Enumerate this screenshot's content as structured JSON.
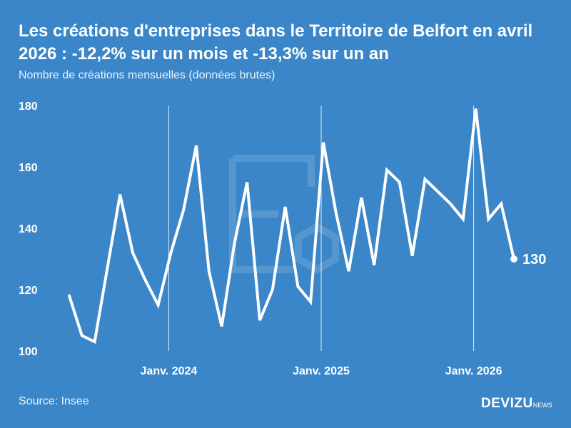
{
  "header": {
    "title": "Les créations d'entreprises dans le Territoire de Belfort en avril 2026 : -12,2% sur un mois et -13,3% sur un an",
    "subtitle": "Nombre de créations mensuelles (données brutes)"
  },
  "footer": {
    "source": "Source: Insee",
    "brand": "DEVIZU",
    "brand_suffix": "NEWS"
  },
  "colors": {
    "background": "#3a86c8",
    "line": "#ffffff",
    "watermark": "#8fb9e0"
  },
  "watermark_icon": "devizu-logo-watermark",
  "chart_data": {
    "type": "line",
    "ylim": [
      100,
      180
    ],
    "yticks": [
      100,
      120,
      140,
      160,
      180
    ],
    "grid": false,
    "x_markers": [
      {
        "label": "Janv. 2024",
        "index": 8
      },
      {
        "label": "Janv. 2025",
        "index": 20
      },
      {
        "label": "Janv. 2026",
        "index": 32
      }
    ],
    "x": [
      "2023-05",
      "2023-06",
      "2023-07",
      "2023-08",
      "2023-09",
      "2023-10",
      "2023-11",
      "2023-12",
      "2024-01",
      "2024-02",
      "2024-03",
      "2024-04",
      "2024-05",
      "2024-06",
      "2024-07",
      "2024-08",
      "2024-09",
      "2024-10",
      "2024-11",
      "2024-12",
      "2025-01",
      "2025-02",
      "2025-03",
      "2025-04",
      "2025-05",
      "2025-06",
      "2025-07",
      "2025-08",
      "2025-09",
      "2025-10",
      "2025-11",
      "2025-12",
      "2026-01",
      "2026-02",
      "2026-03",
      "2026-04"
    ],
    "values": [
      118,
      105,
      103,
      127,
      151,
      132,
      123,
      115,
      132,
      146,
      167,
      126,
      108,
      135,
      155,
      110,
      120,
      147,
      121,
      116,
      168,
      145,
      126,
      150,
      128,
      159,
      155,
      131,
      156,
      152,
      148,
      143,
      179,
      143,
      148,
      130
    ],
    "last_value_label": "130"
  }
}
